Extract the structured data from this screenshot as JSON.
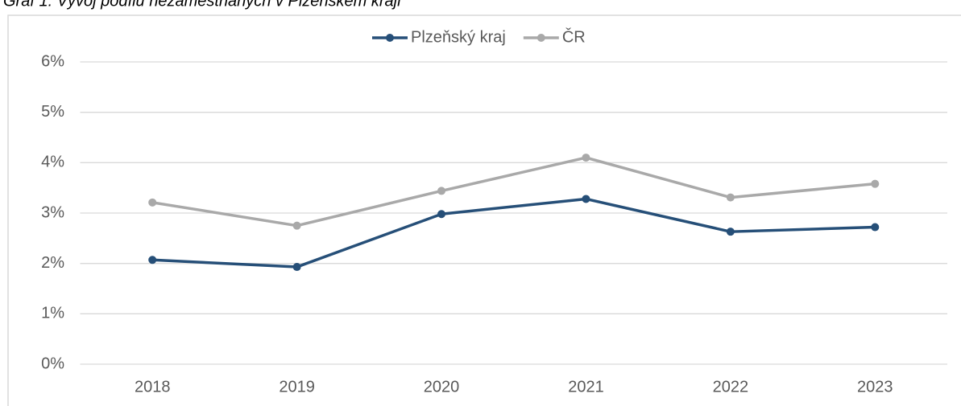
{
  "chart_data": {
    "type": "line",
    "title": "Graf 1: Vývoj podílu nezaměstnaných v Plzeňském kraji",
    "categories": [
      "2018",
      "2019",
      "2020",
      "2021",
      "2022",
      "2023"
    ],
    "series": [
      {
        "name": "Plzeňský kraj",
        "color": "#264f78",
        "values": [
          2.07,
          1.93,
          2.98,
          3.28,
          2.63,
          2.72
        ]
      },
      {
        "name": "ČR",
        "color": "#a9a9a9",
        "values": [
          3.21,
          2.75,
          3.44,
          4.1,
          3.31,
          3.58
        ]
      }
    ],
    "ylim": [
      0,
      6
    ],
    "yticks": [
      {
        "value": 0,
        "label": "0%"
      },
      {
        "value": 1,
        "label": "1%"
      },
      {
        "value": 2,
        "label": "2%"
      },
      {
        "value": 3,
        "label": "3%"
      },
      {
        "value": 4,
        "label": "4%"
      },
      {
        "value": 5,
        "label": "5%"
      },
      {
        "value": 6,
        "label": "6%"
      }
    ],
    "grid": true,
    "legend": "top"
  }
}
